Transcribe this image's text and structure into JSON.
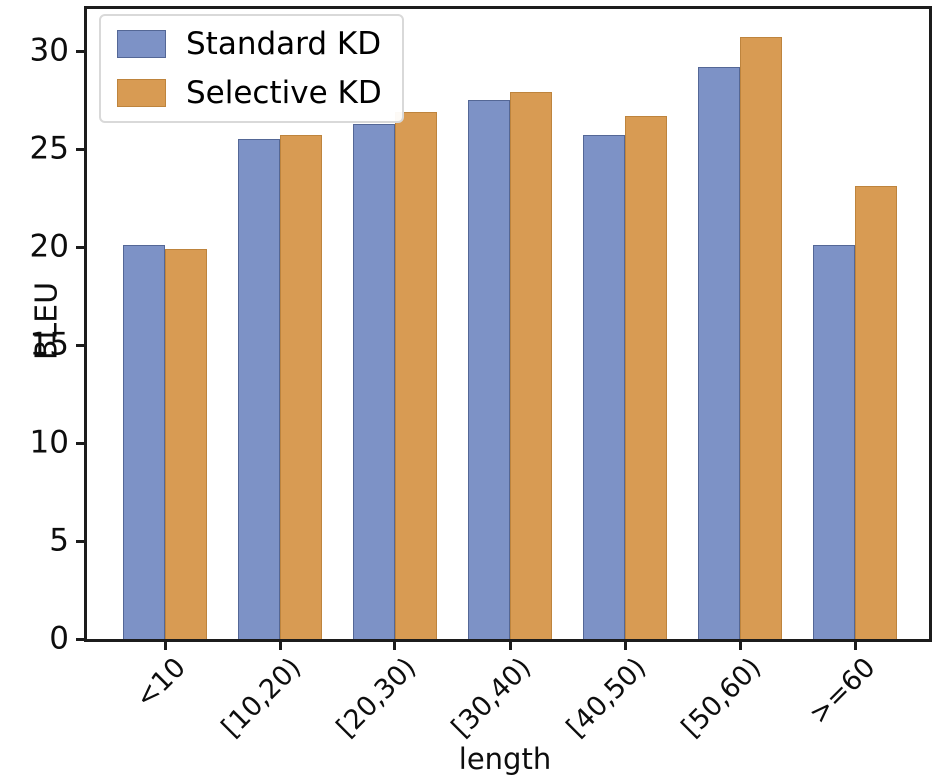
{
  "chart_data": {
    "type": "bar",
    "title": "",
    "xlabel": "length",
    "ylabel": "BLEU",
    "categories": [
      "<10",
      "[10,20)",
      "[20,30)",
      "[30,40)",
      "[40,50)",
      "[50,60)",
      ">=60"
    ],
    "series": [
      {
        "name": "Standard KD",
        "color": "#7d92c6",
        "values": [
          20.1,
          25.5,
          26.3,
          27.5,
          25.7,
          29.2,
          20.1
        ]
      },
      {
        "name": "Selective KD",
        "color": "#d89b53",
        "values": [
          19.9,
          25.7,
          26.9,
          27.9,
          26.7,
          30.7,
          23.1
        ]
      }
    ],
    "ylim": [
      0,
      32.15
    ],
    "yticks": [
      0,
      5,
      10,
      15,
      20,
      25,
      30
    ],
    "legend_position": "upper left",
    "grid": false,
    "bar_orientation": "vertical"
  }
}
